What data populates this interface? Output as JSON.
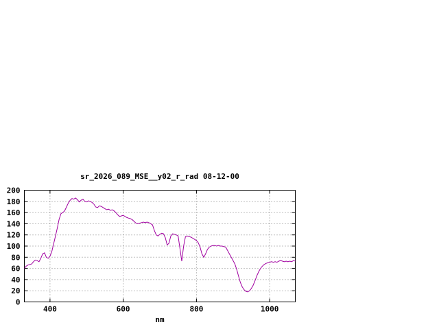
{
  "page": {
    "background": "#ffffff"
  },
  "chart_data": {
    "type": "line",
    "title": "sr_2026_089_MSE__y02_r_rad 08-12-00",
    "xlabel": "nm",
    "ylabel": "",
    "xlim": [
      330,
      1070
    ],
    "ylim": [
      0,
      200
    ],
    "x_ticks": [
      400,
      600,
      800,
      1000
    ],
    "y_ticks": [
      0,
      20,
      40,
      60,
      80,
      100,
      120,
      140,
      160,
      180,
      200
    ],
    "grid": true,
    "legend": "none",
    "line_color": "#a000a0",
    "series": [
      {
        "name": "sr_2026_089_MSE__y02_r_rad",
        "x": [
          330,
          335,
          340,
          345,
          350,
          355,
          360,
          365,
          370,
          375,
          380,
          385,
          390,
          395,
          400,
          405,
          410,
          415,
          420,
          425,
          430,
          435,
          440,
          445,
          450,
          455,
          460,
          465,
          470,
          475,
          480,
          485,
          490,
          495,
          500,
          505,
          510,
          515,
          520,
          525,
          530,
          535,
          540,
          545,
          550,
          555,
          560,
          565,
          570,
          575,
          580,
          585,
          590,
          595,
          600,
          605,
          610,
          615,
          620,
          625,
          630,
          635,
          640,
          645,
          650,
          655,
          660,
          665,
          670,
          675,
          680,
          685,
          690,
          695,
          700,
          705,
          710,
          715,
          720,
          725,
          730,
          735,
          740,
          745,
          750,
          755,
          760,
          765,
          770,
          775,
          780,
          785,
          790,
          795,
          800,
          805,
          810,
          815,
          820,
          825,
          830,
          835,
          840,
          845,
          850,
          855,
          860,
          865,
          870,
          875,
          880,
          885,
          890,
          895,
          900,
          905,
          910,
          915,
          920,
          925,
          930,
          935,
          940,
          945,
          950,
          955,
          960,
          965,
          970,
          975,
          980,
          985,
          990,
          995,
          1000,
          1005,
          1010,
          1015,
          1020,
          1025,
          1030,
          1035,
          1040,
          1045,
          1050,
          1055,
          1060,
          1065,
          1070
        ],
        "y": [
          60,
          64,
          66,
          67,
          68,
          72,
          75,
          74,
          72,
          78,
          86,
          88,
          80,
          78,
          82,
          90,
          104,
          118,
          132,
          148,
          158,
          160,
          163,
          170,
          177,
          182,
          185,
          184,
          186,
          183,
          179,
          182,
          184,
          180,
          179,
          181,
          180,
          178,
          175,
          170,
          169,
          172,
          171,
          169,
          167,
          165,
          166,
          164,
          165,
          163,
          160,
          156,
          153,
          154,
          155,
          153,
          151,
          150,
          149,
          147,
          144,
          141,
          140,
          141,
          142,
          143,
          142,
          143,
          142,
          140,
          138,
          128,
          120,
          118,
          121,
          123,
          122,
          115,
          102,
          105,
          118,
          122,
          121,
          120,
          118,
          95,
          73,
          100,
          117,
          118,
          117,
          116,
          114,
          112,
          110,
          106,
          98,
          86,
          80,
          86,
          94,
          98,
          100,
          101,
          101,
          100,
          101,
          100,
          100,
          99,
          98,
          92,
          86,
          80,
          74,
          68,
          58,
          46,
          35,
          27,
          22,
          19,
          18,
          20,
          24,
          30,
          38,
          47,
          54,
          60,
          64,
          67,
          69,
          70,
          71,
          72,
          71,
          72,
          71,
          73,
          74,
          73,
          72,
          73,
          72,
          73,
          72,
          74,
          73
        ]
      }
    ]
  }
}
